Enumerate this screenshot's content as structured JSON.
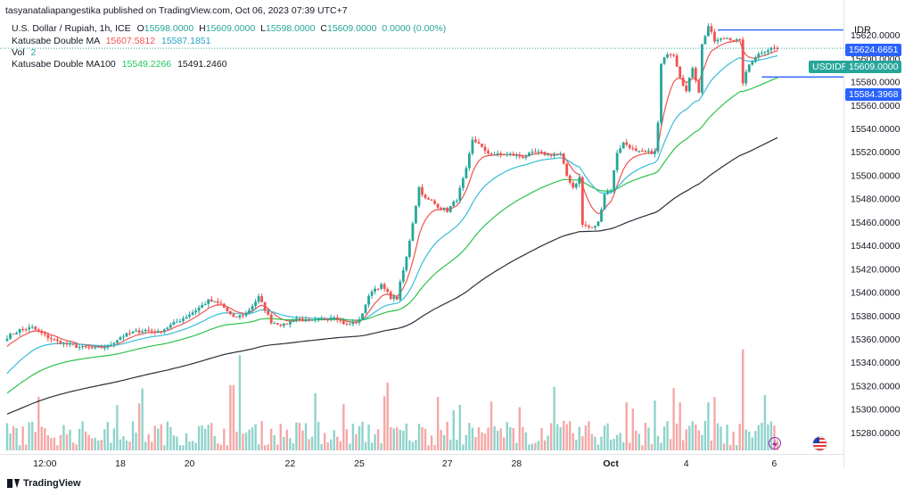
{
  "header": {
    "publisher": "tasyanataliapangestika published on TradingView.com, Oct 06, 2023 07:39 UTC+7"
  },
  "legend": {
    "symbol": "U.S. Dollar / Rupiah, 1h, ICE",
    "open_label": "O",
    "open": "15598.0000",
    "high_label": "H",
    "high": "15609.0000",
    "low_label": "L",
    "low": "15598.0000",
    "close_label": "C",
    "close": "15609.0000",
    "change": "0.0000 (0.00%)",
    "ma1_label": "Katusabe Double MA",
    "ma1_val_a": "15607.5812",
    "ma1_val_b": "15587.1851",
    "vol_label": "Vol",
    "vol_value": "2",
    "ma2_label": "Katusabe Double MA100",
    "ma2_val_a": "15549.2266",
    "ma2_val_b": "15491.2460"
  },
  "price_axis": {
    "currency": "IDR",
    "tag_upper": "15624.6651",
    "tag_current": "15609.0000",
    "tag_lower": "15584.3968",
    "symbol_tag": "USDIDR"
  },
  "footer": {
    "brand": "TradingView"
  },
  "colors": {
    "up": "#26a69a",
    "down": "#ef5350",
    "ma_red": "#ef5350",
    "ma_cyan": "#38bcd8",
    "ma_green": "#2ec24a",
    "ma_black": "#2a2e39",
    "tag_blue": "#2962ff",
    "tag_teal": "#26a69a"
  },
  "chart_data": {
    "type": "candlestick",
    "symbol": "USDIDR",
    "interval": "1h",
    "y_ticks": [
      15280,
      15300,
      15320,
      15340,
      15360,
      15380,
      15400,
      15420,
      15440,
      15460,
      15480,
      15500,
      15520,
      15540,
      15560,
      15580,
      15600,
      15620
    ],
    "y_tick_labels": [
      "15280.0000",
      "15300.0000",
      "15320.0000",
      "15340.0000",
      "15360.0000",
      "15380.0000",
      "15400.0000",
      "15420.0000",
      "15440.0000",
      "15460.0000",
      "15480.0000",
      "15500.0000",
      "15520.0000",
      "15540.0000",
      "15560.0000",
      "15580.0000",
      "15600.0000",
      "15620.0000"
    ],
    "ylim": [
      15265,
      15635
    ],
    "x_labels": [
      "12:00",
      "18",
      "20",
      "22",
      "25",
      "27",
      "28",
      "Oct",
      "4",
      "6"
    ],
    "x_label_bars": [
      12,
      36,
      58,
      90,
      112,
      140,
      162,
      192,
      216,
      244
    ],
    "bars_total": 246,
    "anchors": [
      [
        0,
        15362
      ],
      [
        4,
        15368
      ],
      [
        8,
        15370
      ],
      [
        12,
        15363
      ],
      [
        16,
        15358
      ],
      [
        20,
        15355
      ],
      [
        24,
        15353
      ],
      [
        28,
        15352
      ],
      [
        32,
        15354
      ],
      [
        36,
        15362
      ],
      [
        40,
        15366
      ],
      [
        44,
        15368
      ],
      [
        48,
        15366
      ],
      [
        52,
        15372
      ],
      [
        56,
        15378
      ],
      [
        60,
        15385
      ],
      [
        64,
        15393
      ],
      [
        68,
        15390
      ],
      [
        72,
        15378
      ],
      [
        76,
        15382
      ],
      [
        80,
        15396
      ],
      [
        84,
        15375
      ],
      [
        88,
        15372
      ],
      [
        92,
        15378
      ],
      [
        96,
        15375
      ],
      [
        100,
        15377
      ],
      [
        104,
        15380
      ],
      [
        108,
        15372
      ],
      [
        112,
        15376
      ],
      [
        114,
        15390
      ],
      [
        116,
        15402
      ],
      [
        119,
        15406
      ],
      [
        122,
        15396
      ],
      [
        124,
        15395
      ],
      [
        125,
        15408
      ],
      [
        127,
        15430
      ],
      [
        129,
        15460
      ],
      [
        131,
        15490
      ],
      [
        133,
        15480
      ],
      [
        135,
        15478
      ],
      [
        137,
        15474
      ],
      [
        140,
        15470
      ],
      [
        143,
        15480
      ],
      [
        146,
        15505
      ],
      [
        148,
        15530
      ],
      [
        150,
        15528
      ],
      [
        152,
        15520
      ],
      [
        156,
        15518
      ],
      [
        160,
        15518
      ],
      [
        164,
        15516
      ],
      [
        168,
        15520
      ],
      [
        172,
        15518
      ],
      [
        176,
        15518
      ],
      [
        178,
        15500
      ],
      [
        180,
        15490
      ],
      [
        182,
        15498
      ],
      [
        183,
        15458
      ],
      [
        186,
        15455
      ],
      [
        188,
        15460
      ],
      [
        190,
        15485
      ],
      [
        192,
        15488
      ],
      [
        194,
        15520
      ],
      [
        196,
        15528
      ],
      [
        198,
        15525
      ],
      [
        200,
        15520
      ],
      [
        204,
        15520
      ],
      [
        206,
        15520
      ],
      [
        207,
        15545
      ],
      [
        208,
        15595
      ],
      [
        210,
        15605
      ],
      [
        212,
        15604
      ],
      [
        214,
        15585
      ],
      [
        216,
        15572
      ],
      [
        218,
        15593
      ],
      [
        220,
        15572
      ],
      [
        221,
        15612
      ],
      [
        223,
        15628
      ],
      [
        225,
        15615
      ],
      [
        229,
        15618
      ],
      [
        233,
        15615
      ],
      [
        234,
        15580
      ],
      [
        236,
        15595
      ],
      [
        238,
        15602
      ],
      [
        240,
        15606
      ],
      [
        243,
        15609
      ],
      [
        245,
        15609
      ]
    ],
    "volume_ylim": [
      0,
      140
    ],
    "moving_averages": [
      {
        "name": "Katusabe Double MA",
        "color": "red",
        "last": 15607.5812
      },
      {
        "name": "Katusabe Double MA",
        "color": "cyan",
        "last": 15587.1851
      },
      {
        "name": "Katusabe Double MA100",
        "color": "green",
        "last": 15549.2266
      },
      {
        "name": "Katusabe Double MA100",
        "color": "black",
        "last": 15491.246
      }
    ],
    "levels": [
      15624.6651,
      15609.0,
      15584.3968
    ],
    "grid": false
  }
}
